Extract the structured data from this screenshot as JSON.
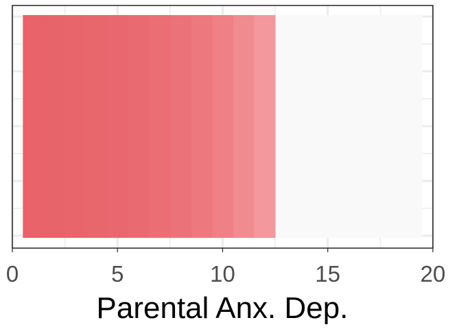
{
  "chart_data": {
    "type": "bar",
    "orientation": "horizontal",
    "xlabel": "Parental Anx. Dep.",
    "ylabel": "",
    "title": "",
    "xlim": [
      0,
      20
    ],
    "x_ticks": [
      0,
      5,
      10,
      15,
      20
    ],
    "x_tick_labels": [
      "0",
      "5",
      "10",
      "15",
      "20"
    ],
    "background_range": [
      0.5,
      19.5
    ],
    "background_color": "#f9f9f9",
    "segments": [
      {
        "start": 0.5,
        "end": 1.5,
        "color": "#e8636a"
      },
      {
        "start": 1.5,
        "end": 2.5,
        "color": "#e8646b"
      },
      {
        "start": 2.5,
        "end": 3.5,
        "color": "#e8656c"
      },
      {
        "start": 3.5,
        "end": 4.5,
        "color": "#e8676d"
      },
      {
        "start": 4.5,
        "end": 5.5,
        "color": "#e9686f"
      },
      {
        "start": 5.5,
        "end": 6.5,
        "color": "#e96b71"
      },
      {
        "start": 6.5,
        "end": 7.5,
        "color": "#ea6e74"
      },
      {
        "start": 7.5,
        "end": 8.5,
        "color": "#eb7278"
      },
      {
        "start": 8.5,
        "end": 9.5,
        "color": "#ed787e"
      },
      {
        "start": 9.5,
        "end": 10.5,
        "color": "#ee8086"
      },
      {
        "start": 10.5,
        "end": 11.5,
        "color": "#f08b90"
      },
      {
        "start": 11.5,
        "end": 12.5,
        "color": "#f3989d"
      }
    ],
    "grid": true,
    "legend": "none"
  }
}
